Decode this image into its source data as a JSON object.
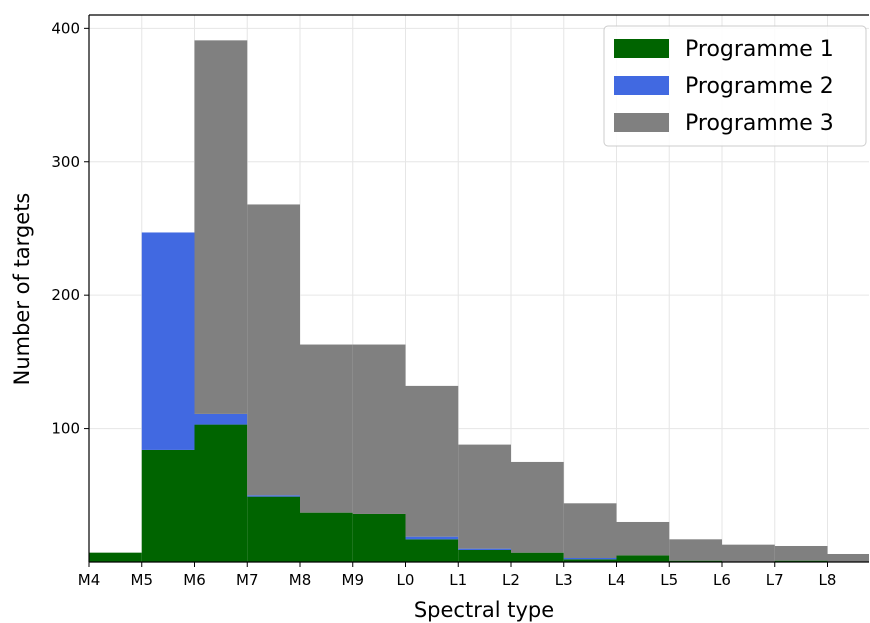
{
  "chart_data": {
    "type": "bar",
    "stacked": true,
    "title": "",
    "xlabel": "Spectral type",
    "ylabel": "Number of targets",
    "categories": [
      "M4",
      "M5",
      "M6",
      "M7",
      "M8",
      "M9",
      "L0",
      "L1",
      "L2",
      "L3",
      "L4",
      "L5",
      "L6",
      "L7",
      "L8"
    ],
    "series": [
      {
        "name": "Programme 1",
        "color": "#006400",
        "values": [
          7,
          84,
          103,
          49,
          37,
          36,
          17,
          9,
          7,
          2,
          5,
          1,
          0,
          1,
          0
        ]
      },
      {
        "name": "Programme 2",
        "color": "#4169e1",
        "values": [
          0,
          163,
          8,
          1,
          0,
          0,
          2,
          1,
          0,
          1,
          0,
          0,
          0,
          0,
          0
        ]
      },
      {
        "name": "Programme 3",
        "color": "#808080",
        "values": [
          0,
          0,
          280,
          218,
          126,
          127,
          113,
          78,
          68,
          41,
          25,
          16,
          13,
          11,
          6
        ]
      }
    ],
    "yticks": [
      100,
      200,
      300,
      400
    ],
    "ylim": [
      0,
      410
    ],
    "grid": true,
    "legend_position": "top-right"
  }
}
